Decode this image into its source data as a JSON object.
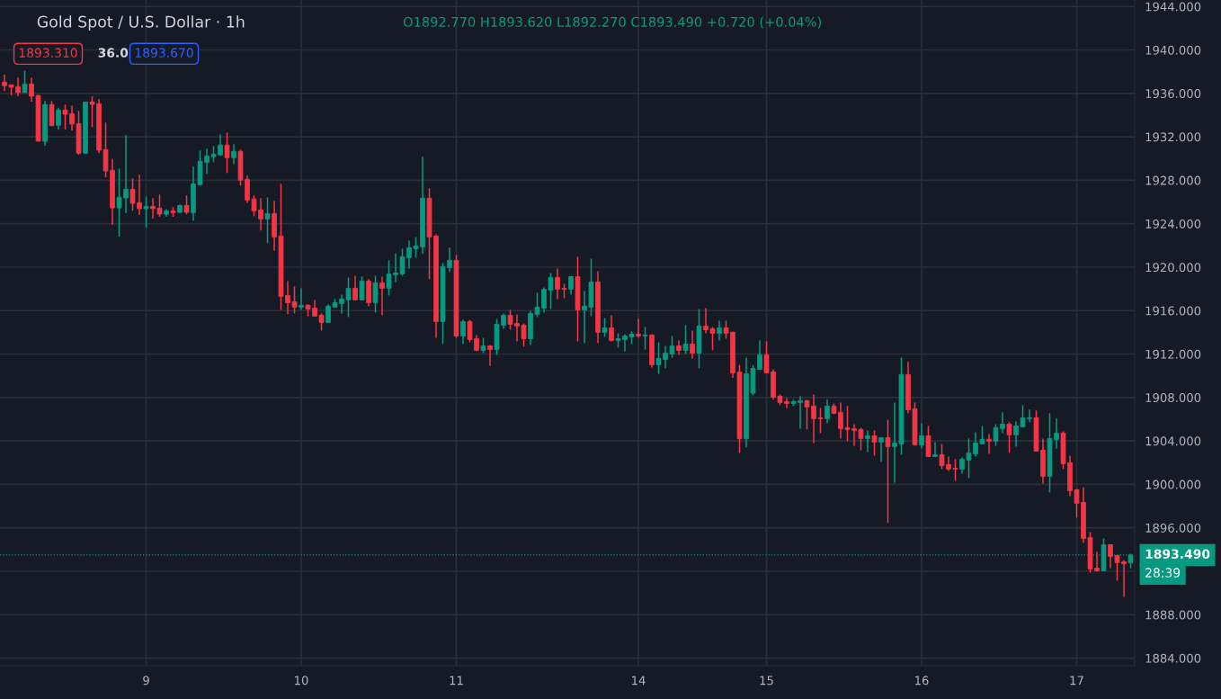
{
  "chart_data": {
    "type": "candlestick",
    "title": "Gold Spot / U.S. Dollar · 1h",
    "annotations": [
      "O1892.770 H1893.620 L1892.270 C1893.490 +0.720 (+0.04%)",
      "1893.310",
      "36.0",
      "1893.670",
      "28:39"
    ],
    "categories": [
      null,
      null,
      null,
      null,
      null,
      null,
      null,
      null,
      null,
      null,
      null,
      null,
      null,
      null,
      null,
      null,
      null,
      null,
      null,
      null,
      null,
      "9",
      null,
      null,
      null,
      null,
      null,
      null,
      null,
      null,
      null,
      null,
      null,
      null,
      null,
      null,
      null,
      null,
      null,
      null,
      null,
      null,
      null,
      null,
      "10",
      null,
      null,
      null,
      null,
      null,
      null,
      null,
      null,
      null,
      null,
      null,
      null,
      null,
      null,
      null,
      null,
      null,
      null,
      null,
      null,
      null,
      null,
      "11",
      null,
      null,
      null,
      null,
      null,
      null,
      null,
      null,
      null,
      null,
      null,
      null,
      null,
      null,
      null,
      null,
      null,
      null,
      null,
      null,
      null,
      null,
      null,
      null,
      null,
      null,
      "14",
      null,
      null,
      null,
      null,
      null,
      null,
      null,
      null,
      null,
      null,
      null,
      null,
      null,
      null,
      null,
      null,
      null,
      null,
      "15",
      null,
      null,
      null,
      null,
      null,
      null,
      null,
      null,
      null,
      null,
      null,
      null,
      null,
      null,
      null,
      null,
      null,
      null,
      null,
      null,
      null,
      null,
      "16",
      null,
      null,
      null,
      null,
      null,
      null,
      null,
      null,
      null,
      null,
      null,
      null,
      null,
      null,
      null,
      null,
      null,
      null,
      null,
      null,
      null,
      null,
      "17",
      null,
      null,
      null,
      null,
      null,
      null,
      null,
      null
    ],
    "ohlc": [
      [
        1937.04,
        1937.73,
        1936.24,
        1936.71
      ],
      [
        1936.79,
        1936.79,
        1935.82,
        1936.57
      ],
      [
        1936.62,
        1937.45,
        1935.74,
        1936.07
      ],
      [
        1936.07,
        1938.1,
        1936.07,
        1936.87
      ],
      [
        1936.87,
        1937.45,
        1935.24,
        1935.74
      ],
      [
        1935.8,
        1935.88,
        1931.6,
        1931.6
      ],
      [
        1931.6,
        1935.3,
        1931.18,
        1934.97
      ],
      [
        1934.97,
        1935.3,
        1932.98,
        1933.03
      ],
      [
        1933.06,
        1934.69,
        1932.67,
        1934.47
      ],
      [
        1934.47,
        1934.97,
        1932.67,
        1934.08
      ],
      [
        1934.14,
        1934.88,
        1932.59,
        1933.17
      ],
      [
        1933.22,
        1934.39,
        1930.35,
        1930.49
      ],
      [
        1930.49,
        1935.21,
        1930.49,
        1935.21
      ],
      [
        1935.21,
        1935.71,
        1932.89,
        1934.99
      ],
      [
        1935.05,
        1935.46,
        1930.52,
        1930.77
      ],
      [
        1930.82,
        1933.31,
        1928.28,
        1928.86
      ],
      [
        1928.92,
        1929.97,
        1923.89,
        1925.46
      ],
      [
        1925.46,
        1929.08,
        1922.81,
        1926.43
      ],
      [
        1926.37,
        1932.15,
        1924.96,
        1927.17
      ],
      [
        1927.17,
        1928.17,
        1925.21,
        1925.88
      ],
      [
        1925.93,
        1928.5,
        1924.8,
        1925.38
      ],
      [
        1925.38,
        1926.51,
        1923.64,
        1925.6
      ],
      [
        1925.6,
        1926.35,
        1924.47,
        1925.38
      ],
      [
        1925.43,
        1926.68,
        1924.63,
        1924.88
      ],
      [
        1924.88,
        1925.35,
        1924.63,
        1925.18
      ],
      [
        1925.18,
        1925.52,
        1924.63,
        1925.02
      ],
      [
        1925.05,
        1925.77,
        1924.96,
        1925.68
      ],
      [
        1925.68,
        1926.6,
        1924.88,
        1925.05
      ],
      [
        1925.02,
        1929.25,
        1924.28,
        1927.67
      ],
      [
        1927.59,
        1930.74,
        1927.51,
        1929.75
      ],
      [
        1929.66,
        1930.91,
        1928.59,
        1930.24
      ],
      [
        1930.16,
        1931.16,
        1929.66,
        1930.41
      ],
      [
        1930.33,
        1932.23,
        1930.24,
        1931.24
      ],
      [
        1931.24,
        1932.4,
        1928.67,
        1930.08
      ],
      [
        1930.08,
        1931.32,
        1929.5,
        1930.66
      ],
      [
        1930.66,
        1930.83,
        1927.51,
        1928.01
      ],
      [
        1928.09,
        1928.42,
        1925.93,
        1926.18
      ],
      [
        1926.27,
        1926.6,
        1924.69,
        1925.19
      ],
      [
        1925.27,
        1926.35,
        1923.37,
        1924.44
      ],
      [
        1924.44,
        1926.43,
        1922.2,
        1924.94
      ],
      [
        1924.94,
        1926.1,
        1921.54,
        1922.78
      ],
      [
        1922.87,
        1927.67,
        1916.07,
        1917.31
      ],
      [
        1917.4,
        1918.72,
        1915.66,
        1916.73
      ],
      [
        1916.82,
        1918.23,
        1915.74,
        1916.32
      ],
      [
        1916.32,
        1918.06,
        1916.07,
        1916.49
      ],
      [
        1916.49,
        1916.57,
        1915.49,
        1916.15
      ],
      [
        1916.24,
        1916.98,
        1915.49,
        1915.49
      ],
      [
        1915.57,
        1915.74,
        1914.16,
        1914.91
      ],
      [
        1914.91,
        1916.57,
        1914.91,
        1916.4
      ],
      [
        1916.32,
        1917.07,
        1916.32,
        1916.73
      ],
      [
        1916.65,
        1917.48,
        1915.74,
        1917.07
      ],
      [
        1916.98,
        1919.05,
        1915.41,
        1918.06
      ],
      [
        1918.06,
        1919.22,
        1916.98,
        1916.98
      ],
      [
        1916.98,
        1919.14,
        1916.98,
        1918.72
      ],
      [
        1918.72,
        1918.89,
        1916.4,
        1916.73
      ],
      [
        1916.73,
        1919.22,
        1915.82,
        1918.56
      ],
      [
        1918.55,
        1919.13,
        1915.57,
        1918.06
      ],
      [
        1918.06,
        1920.63,
        1917.39,
        1919.38
      ],
      [
        1919.3,
        1921.29,
        1918.64,
        1919.46
      ],
      [
        1919.38,
        1921.7,
        1919.22,
        1920.96
      ],
      [
        1920.88,
        1922.45,
        1919.88,
        1921.79
      ],
      [
        1921.7,
        1922.78,
        1920.88,
        1921.95
      ],
      [
        1921.87,
        1930.16,
        1921.21,
        1926.35
      ],
      [
        1926.35,
        1927.26,
        1918.89,
        1922.78
      ],
      [
        1922.86,
        1923.03,
        1913.5,
        1914.99
      ],
      [
        1914.99,
        1920.38,
        1912.92,
        1920.05
      ],
      [
        1919.96,
        1921.79,
        1919.55,
        1920.63
      ],
      [
        1920.63,
        1921.12,
        1913.5,
        1913.66
      ],
      [
        1913.66,
        1915.15,
        1912.92,
        1914.99
      ],
      [
        1914.99,
        1915.15,
        1913.08,
        1913.33
      ],
      [
        1913.41,
        1913.74,
        1912.25,
        1912.34
      ],
      [
        1912.34,
        1913.5,
        1912.09,
        1912.75
      ],
      [
        1912.75,
        1912.83,
        1910.93,
        1912.42
      ],
      [
        1912.42,
        1915.24,
        1911.92,
        1914.74
      ],
      [
        1914.66,
        1915.74,
        1914.33,
        1915.57
      ],
      [
        1915.57,
        1916.07,
        1914.25,
        1914.74
      ],
      [
        1914.82,
        1915.65,
        1913.17,
        1914.58
      ],
      [
        1914.66,
        1914.82,
        1912.67,
        1913.41
      ],
      [
        1913.41,
        1915.98,
        1912.83,
        1915.74
      ],
      [
        1915.65,
        1917.64,
        1915.4,
        1916.32
      ],
      [
        1916.23,
        1918.14,
        1915.82,
        1917.97
      ],
      [
        1917.89,
        1919.46,
        1916.15,
        1919.05
      ],
      [
        1919.05,
        1919.88,
        1917.06,
        1917.97
      ],
      [
        1918.06,
        1918.47,
        1917.14,
        1917.97
      ],
      [
        1917.97,
        1919.13,
        1917.48,
        1919.13
      ],
      [
        1919.13,
        1920.96,
        1913.17,
        1916.07
      ],
      [
        1916.07,
        1917.81,
        1913.0,
        1916.4
      ],
      [
        1916.31,
        1920.79,
        1915.49,
        1918.64
      ],
      [
        1918.64,
        1919.63,
        1913.0,
        1914.0
      ],
      [
        1914.0,
        1915.32,
        1913.58,
        1914.41
      ],
      [
        1914.41,
        1915.57,
        1913.17,
        1913.25
      ],
      [
        1913.25,
        1913.91,
        1912.59,
        1913.41
      ],
      [
        1913.33,
        1913.83,
        1912.25,
        1913.66
      ],
      [
        1913.58,
        1914.08,
        1912.92,
        1913.83
      ],
      [
        1913.83,
        1915.24,
        1913.5,
        1913.66
      ],
      [
        1913.66,
        1914.49,
        1912.42,
        1913.75
      ],
      [
        1913.75,
        1913.83,
        1910.76,
        1911.01
      ],
      [
        1911.01,
        1913.08,
        1910.18,
        1911.59
      ],
      [
        1911.51,
        1912.75,
        1910.68,
        1912.09
      ],
      [
        1912.0,
        1913.66,
        1911.67,
        1912.75
      ],
      [
        1912.75,
        1913.25,
        1911.92,
        1912.34
      ],
      [
        1912.34,
        1914.66,
        1912.0,
        1912.92
      ],
      [
        1912.92,
        1914.16,
        1911.59,
        1912.09
      ],
      [
        1912.09,
        1916.15,
        1910.68,
        1914.58
      ],
      [
        1914.58,
        1916.23,
        1913.91,
        1914.24
      ],
      [
        1914.33,
        1914.49,
        1912.34,
        1913.91
      ],
      [
        1913.91,
        1915.07,
        1913.25,
        1914.41
      ],
      [
        1914.41,
        1915.07,
        1913.41,
        1913.91
      ],
      [
        1914.0,
        1914.08,
        1909.8,
        1910.26
      ],
      [
        1910.35,
        1911.0,
        1902.9,
        1904.2
      ],
      [
        1904.2,
        1911.67,
        1903.4,
        1910.2
      ],
      [
        1908.4,
        1911.0,
        1908.2,
        1910.68
      ],
      [
        1910.6,
        1913.26,
        1910.6,
        1911.93
      ],
      [
        1911.93,
        1913.17,
        1910.27,
        1910.27
      ],
      [
        1910.36,
        1910.6,
        1907.79,
        1908.03
      ],
      [
        1908.12,
        1908.28,
        1907.29,
        1907.54
      ],
      [
        1907.62,
        1907.95,
        1907.04,
        1907.45
      ],
      [
        1907.45,
        1907.79,
        1907.21,
        1907.62
      ],
      [
        1907.54,
        1908.12,
        1905.13,
        1907.7
      ],
      [
        1907.7,
        1907.79,
        1905.05,
        1907.12
      ],
      [
        1907.21,
        1908.28,
        1903.81,
        1906.05
      ],
      [
        1906.13,
        1907.04,
        1904.72,
        1906.05
      ],
      [
        1906.05,
        1907.79,
        1905.63,
        1907.21
      ],
      [
        1907.21,
        1907.45,
        1906.46,
        1906.54
      ],
      [
        1906.63,
        1907.54,
        1904.22,
        1905.13
      ],
      [
        1905.22,
        1907.21,
        1903.97,
        1905.05
      ],
      [
        1905.13,
        1905.55,
        1903.56,
        1904.97
      ],
      [
        1905.05,
        1905.22,
        1903.14,
        1904.22
      ],
      [
        1904.22,
        1904.97,
        1902.98,
        1904.47
      ],
      [
        1904.47,
        1904.97,
        1902.65,
        1903.89
      ],
      [
        1903.89,
        1904.3,
        1902.07,
        1904.3
      ],
      [
        1904.3,
        1905.96,
        1896.43,
        1903.48
      ],
      [
        1903.48,
        1907.54,
        1900.16,
        1903.81
      ],
      [
        1903.72,
        1911.68,
        1902.73,
        1910.11
      ],
      [
        1910.11,
        1911.27,
        1906.54,
        1906.87
      ],
      [
        1906.96,
        1907.54,
        1903.56,
        1903.64
      ],
      [
        1903.64,
        1905.63,
        1903.31,
        1904.47
      ],
      [
        1904.47,
        1905.38,
        1902.56,
        1902.56
      ],
      [
        1902.56,
        1903.89,
        1902.56,
        1902.73
      ],
      [
        1902.73,
        1903.72,
        1901.4,
        1901.73
      ],
      [
        1901.82,
        1902.57,
        1901.24,
        1901.41
      ],
      [
        1901.49,
        1902.32,
        1900.33,
        1901.41
      ],
      [
        1901.41,
        1902.48,
        1900.99,
        1902.32
      ],
      [
        1902.23,
        1904.22,
        1900.58,
        1902.9
      ],
      [
        1902.81,
        1904.8,
        1902.57,
        1903.81
      ],
      [
        1903.73,
        1905.38,
        1903.73,
        1904.14
      ],
      [
        1904.14,
        1904.64,
        1902.81,
        1903.98
      ],
      [
        1903.98,
        1905.55,
        1903.56,
        1905.22
      ],
      [
        1905.14,
        1906.63,
        1904.72,
        1905.55
      ],
      [
        1905.55,
        1905.72,
        1902.9,
        1904.56
      ],
      [
        1904.56,
        1905.8,
        1903.48,
        1905.38
      ],
      [
        1905.3,
        1907.29,
        1905.3,
        1906.13
      ],
      [
        1906.05,
        1906.88,
        1905.72,
        1906.13
      ],
      [
        1906.13,
        1906.8,
        1903.06,
        1903.06
      ],
      [
        1903.15,
        1904.22,
        1900.08,
        1900.74
      ],
      [
        1900.74,
        1906.55,
        1899.25,
        1904.22
      ],
      [
        1904.14,
        1906.05,
        1903.31,
        1904.72
      ],
      [
        1904.72,
        1904.89,
        1901.41,
        1901.9
      ],
      [
        1901.99,
        1902.65,
        1898.92,
        1899.42
      ],
      [
        1899.5,
        1899.58,
        1896.93,
        1898.26
      ],
      [
        1898.34,
        1899.75,
        1894.61,
        1895.02
      ],
      [
        1895.11,
        1895.6,
        1891.87,
        1892.21
      ],
      [
        1892.29,
        1893.78,
        1891.96,
        1892.04
      ],
      [
        1892.04,
        1895.02,
        1892.04,
        1894.44
      ],
      [
        1894.44,
        1894.44,
        1892.29,
        1893.37
      ],
      [
        1893.45,
        1893.45,
        1891.13,
        1892.79
      ],
      [
        1892.87,
        1893.04,
        1889.64,
        1892.7
      ],
      [
        1892.77,
        1893.62,
        1892.27,
        1893.49
      ]
    ],
    "colors": [
      "#f23645",
      "#f23645",
      "#f23645",
      "#089981",
      "#f23645",
      "#f23645",
      "#089981",
      "#f23645",
      "#089981",
      "#f23645",
      "#f23645",
      "#f23645",
      "#089981",
      "#f23645",
      "#f23645",
      "#f23645",
      "#f23645",
      "#089981",
      "#089981",
      "#f23645",
      "#f23645",
      "#089981",
      "#f23645",
      "#f23645",
      "#089981",
      "#f23645",
      "#089981",
      "#f23645",
      "#089981",
      "#089981",
      "#089981",
      "#089981",
      "#089981",
      "#f23645",
      "#089981",
      "#f23645",
      "#f23645",
      "#f23645",
      "#f23645",
      "#089981",
      "#f23645",
      "#f23645",
      "#f23645",
      "#f23645",
      "#089981",
      "#f23645",
      "#f23645",
      "#f23645",
      "#089981",
      "#089981",
      "#089981",
      "#089981",
      "#f23645",
      "#089981",
      "#f23645",
      "#089981",
      "#f23645",
      "#089981",
      "#089981",
      "#089981",
      "#089981",
      "#089981",
      "#089981",
      "#f23645",
      "#f23645",
      "#089981",
      "#089981",
      "#f23645",
      "#089981",
      "#f23645",
      "#f23645",
      "#089981",
      "#f23645",
      "#089981",
      "#089981",
      "#f23645",
      "#f23645",
      "#f23645",
      "#089981",
      "#089981",
      "#089981",
      "#089981",
      "#f23645",
      "#f23645",
      "#089981",
      "#f23645",
      "#089981",
      "#089981",
      "#f23645",
      "#089981",
      "#f23645",
      "#089981",
      "#089981",
      "#089981",
      "#f23645",
      "#089981",
      "#f23645",
      "#089981",
      "#089981",
      "#089981",
      "#f23645",
      "#089981",
      "#f23645",
      "#089981",
      "#f23645",
      "#f23645",
      "#089981",
      "#f23645",
      "#f23645",
      "#f23645",
      "#089981",
      "#089981",
      "#089981",
      "#f23645",
      "#f23645",
      "#f23645",
      "#f23645",
      "#089981",
      "#089981",
      "#f23645",
      "#f23645",
      "#f23645",
      "#089981",
      "#f23645",
      "#f23645",
      "#f23645",
      "#f23645",
      "#f23645",
      "#089981",
      "#f23645",
      "#089981",
      "#f23645",
      "#089981",
      "#089981",
      "#f23645",
      "#f23645",
      "#089981",
      "#f23645",
      "#089981",
      "#f23645",
      "#f23645",
      "#f23645",
      "#089981",
      "#089981",
      "#089981",
      "#089981",
      "#f23645",
      "#089981",
      "#089981",
      "#f23645",
      "#089981",
      "#089981",
      "#089981",
      "#f23645",
      "#f23645",
      "#089981",
      "#089981",
      "#f23645",
      "#f23645",
      "#f23645",
      "#f23645",
      "#f23645",
      "#f23645",
      "#089981",
      "#f23645",
      "#f23645",
      "#f23645",
      "#089981"
    ],
    "ylim": [
      1883.3,
      1944.6
    ],
    "yticks": [
      {
        "value": 1884,
        "label": "1884.000"
      },
      {
        "value": 1888,
        "label": "1888.000"
      },
      {
        "value": 1892,
        "label": null
      },
      {
        "value": 1896,
        "label": "1896.000"
      },
      {
        "value": 1900,
        "label": "1900.000"
      },
      {
        "value": 1904,
        "label": "1904.000"
      },
      {
        "value": 1908,
        "label": "1908.000"
      },
      {
        "value": 1912,
        "label": "1912.000"
      },
      {
        "value": 1916,
        "label": "1916.000"
      },
      {
        "value": 1920,
        "label": "1920.000"
      },
      {
        "value": 1924,
        "label": "1924.000"
      },
      {
        "value": 1928,
        "label": "1928.000"
      },
      {
        "value": 1932,
        "label": "1932.000"
      },
      {
        "value": 1936,
        "label": "1936.000"
      },
      {
        "value": 1940,
        "label": "1940.000"
      },
      {
        "value": 1944,
        "label": "1944.000"
      }
    ],
    "ref_lines": [
      {
        "axis": "y",
        "value": 1893.49,
        "label": "1893.490",
        "color": "#089981",
        "line_style": "dotted"
      }
    ],
    "grid": true
  }
}
